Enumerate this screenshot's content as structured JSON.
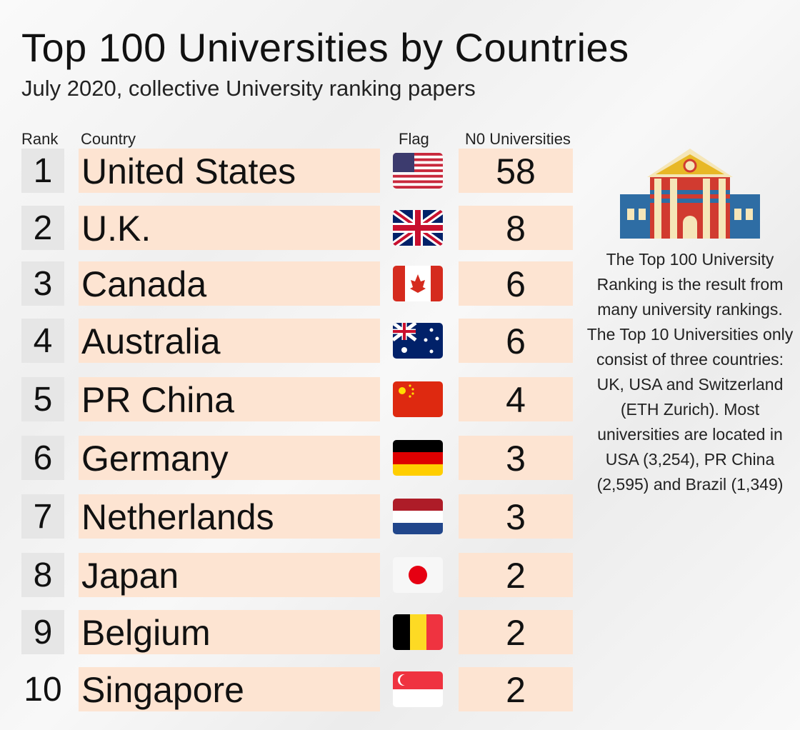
{
  "title": "Top 100 Universities by Countries",
  "subtitle": "July 2020, collective University ranking papers",
  "headers": {
    "rank": "Rank",
    "country": "Country",
    "flag": "Flag",
    "count": "N0 Universities"
  },
  "side_text": "The Top 100 University Ranking is the result from many university rankings. The Top 10 Universities only consist of three countries: UK, USA and Switzerland (ETH Zurich). Most universities are located in USA (3,254), PR China (2,595) and Brazil (1,349)",
  "colors": {
    "row_bg": "#fde4d2",
    "rank_bg": "#e6e6e6"
  },
  "chart_data": {
    "type": "table",
    "title": "Top 100 Universities by Countries",
    "columns": [
      "Rank",
      "Country",
      "Flag",
      "N0 Universities"
    ],
    "rows": [
      {
        "rank": "1",
        "country": "United States",
        "flag": "us",
        "count": "58"
      },
      {
        "rank": "2",
        "country": "U.K.",
        "flag": "uk",
        "count": "8"
      },
      {
        "rank": "3",
        "country": "Canada",
        "flag": "ca",
        "count": "6"
      },
      {
        "rank": "4",
        "country": "Australia",
        "flag": "au",
        "count": "6"
      },
      {
        "rank": "5",
        "country": "PR China",
        "flag": "cn",
        "count": "4"
      },
      {
        "rank": "6",
        "country": "Germany",
        "flag": "de",
        "count": "3"
      },
      {
        "rank": "7",
        "country": "Netherlands",
        "flag": "nl",
        "count": "3"
      },
      {
        "rank": "8",
        "country": "Japan",
        "flag": "jp",
        "count": "2"
      },
      {
        "rank": "9",
        "country": "Belgium",
        "flag": "be",
        "count": "2"
      },
      {
        "rank": "10",
        "country": "Singapore",
        "flag": "sg",
        "count": "2"
      }
    ]
  }
}
